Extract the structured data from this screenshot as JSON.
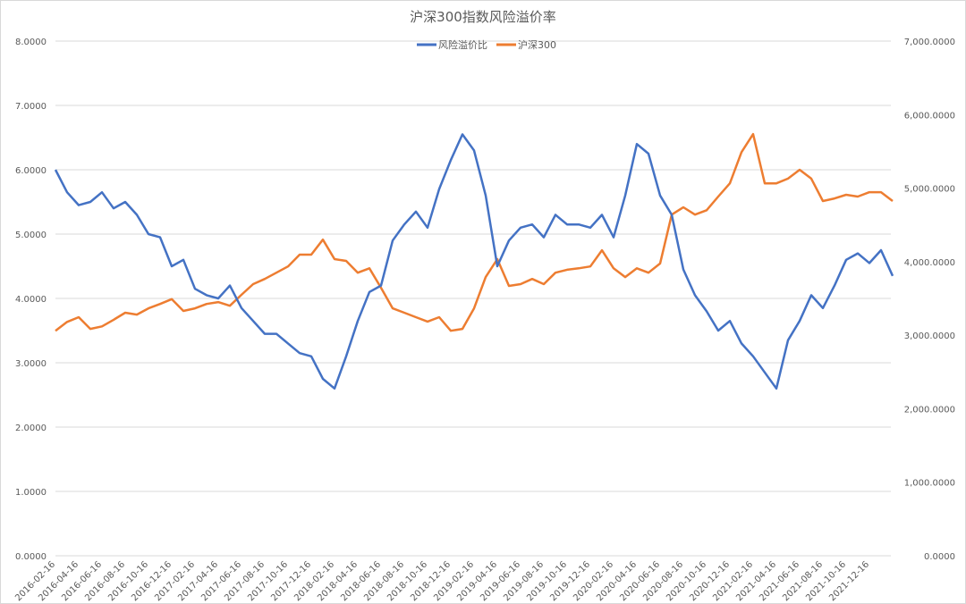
{
  "chart_data": {
    "type": "line",
    "title": "沪深300指数风险溢价率",
    "legend_position": "top-center",
    "grid": true,
    "x_tick_labels": [
      "2016-02-16",
      "2016-04-16",
      "2016-06-16",
      "2016-08-16",
      "2016-10-16",
      "2016-12-16",
      "2017-02-16",
      "2017-04-16",
      "2017-06-16",
      "2017-08-16",
      "2017-10-16",
      "2017-12-16",
      "2018-02-16",
      "2018-04-16",
      "2018-06-16",
      "2018-08-16",
      "2018-10-16",
      "2018-12-16",
      "2019-02-16",
      "2019-04-16",
      "2019-06-16",
      "2019-08-16",
      "2019-10-16",
      "2019-12-16",
      "2020-02-16",
      "2020-04-16",
      "2020-06-16",
      "2020-08-16",
      "2020-10-16",
      "2020-12-16",
      "2021-02-16",
      "2021-04-16",
      "2021-06-16",
      "2021-08-16",
      "2021-10-16",
      "2021-12-16"
    ],
    "y_left": {
      "range": [
        0,
        8
      ],
      "ticks": [
        "0.0000",
        "1.0000",
        "2.0000",
        "3.0000",
        "4.0000",
        "5.0000",
        "6.0000",
        "7.0000",
        "8.0000"
      ]
    },
    "y_right": {
      "range": [
        0,
        7000
      ],
      "ticks": [
        "0.0000",
        "1,000.0000",
        "2,000.0000",
        "3,000.0000",
        "4,000.0000",
        "5,000.0000",
        "6,000.0000",
        "7,000.0000"
      ]
    },
    "x_start": "2016-02",
    "x_step": "1 month",
    "series": [
      {
        "name": "风险溢价比",
        "axis": "left",
        "color": "#4472c4",
        "values": [
          6.0,
          5.65,
          5.45,
          5.5,
          5.65,
          5.4,
          5.5,
          5.3,
          5.0,
          4.95,
          4.5,
          4.6,
          4.15,
          4.05,
          4.0,
          4.2,
          3.85,
          3.65,
          3.45,
          3.45,
          3.3,
          3.15,
          3.1,
          2.75,
          2.6,
          3.1,
          3.65,
          4.1,
          4.2,
          4.9,
          5.15,
          5.35,
          5.1,
          5.7,
          6.15,
          6.55,
          6.3,
          5.6,
          4.5,
          4.9,
          5.1,
          5.15,
          4.95,
          5.3,
          5.15,
          5.15,
          5.1,
          5.3,
          4.95,
          5.6,
          6.4,
          6.25,
          5.6,
          5.3,
          4.45,
          4.05,
          3.8,
          3.5,
          3.65,
          3.3,
          3.1,
          2.85,
          2.6,
          3.35,
          3.65,
          4.05,
          3.85,
          4.2,
          4.6,
          4.7,
          4.55,
          4.75,
          4.35
        ]
      },
      {
        "name": "沪深300",
        "axis": "right",
        "color": "#ed7d31",
        "values": [
          3060,
          3180,
          3245,
          3085,
          3120,
          3210,
          3305,
          3280,
          3365,
          3425,
          3490,
          3330,
          3365,
          3425,
          3450,
          3400,
          3550,
          3695,
          3765,
          3850,
          3935,
          4095,
          4095,
          4300,
          4035,
          4010,
          3850,
          3910,
          3645,
          3365,
          3305,
          3245,
          3185,
          3245,
          3060,
          3085,
          3365,
          3790,
          4035,
          3670,
          3695,
          3765,
          3695,
          3850,
          3890,
          3910,
          3935,
          4155,
          3910,
          3790,
          3910,
          3850,
          3975,
          4640,
          4740,
          4640,
          4700,
          4885,
          5065,
          5490,
          5735,
          5065,
          5065,
          5130,
          5250,
          5130,
          4825,
          4860,
          4910,
          4885,
          4945,
          4945,
          4825
        ]
      }
    ]
  }
}
